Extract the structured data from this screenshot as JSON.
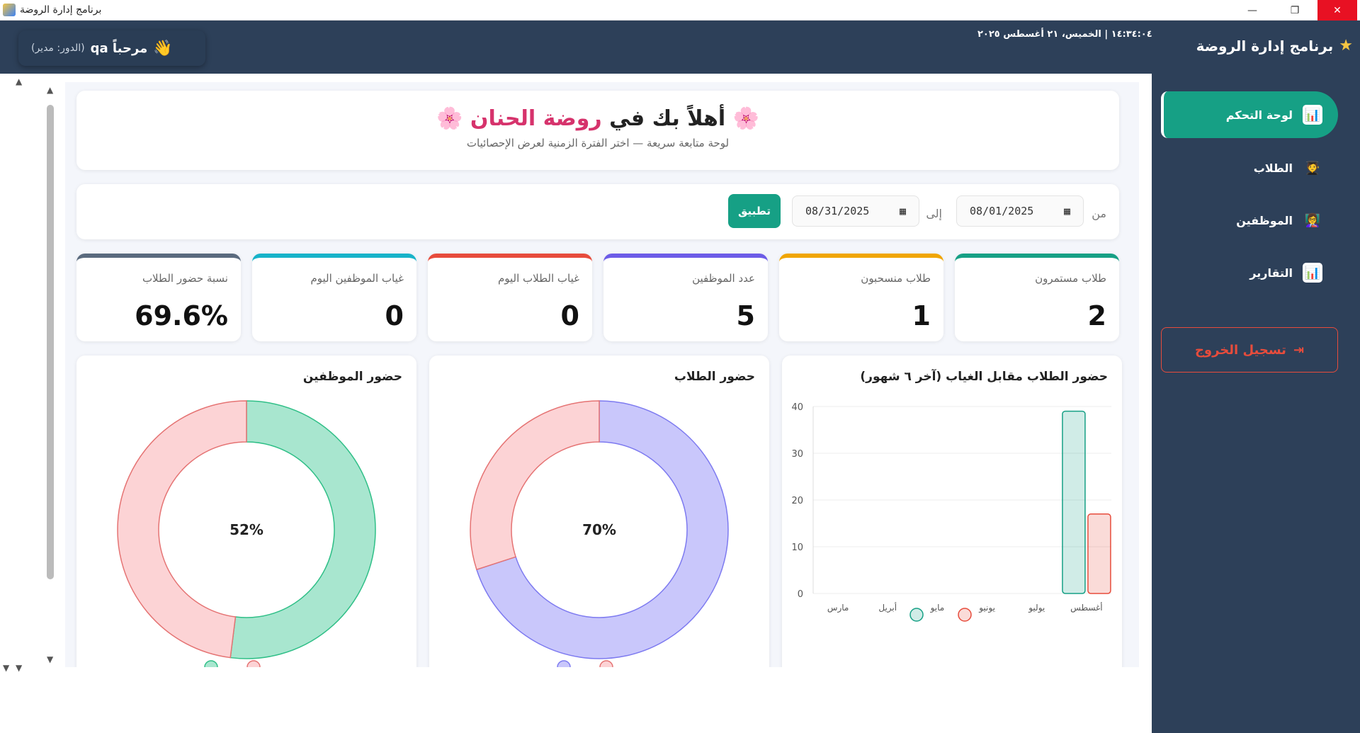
{
  "window": {
    "title": "برنامج إدارة الروضة",
    "min": "—",
    "max": "❐",
    "close": "✕"
  },
  "header": {
    "hand": "👋",
    "greeting": "مرحباً qa",
    "role": "(الدور: مدير)",
    "datetime": "١٤:٣٤:٠٤  |  الخميس، ٢١ أغسطس ٢٠٢٥",
    "star": "★",
    "brand": "برنامج إدارة الروضة"
  },
  "sidebar": {
    "items": [
      {
        "label": "لوحة التحكم",
        "icon": "📊"
      },
      {
        "label": "الطلاب",
        "icon": "🧑‍🎓"
      },
      {
        "label": "الموظفين",
        "icon": "👩‍🏫"
      },
      {
        "label": "التقارير",
        "icon": "📊"
      }
    ],
    "logout": "تسجيل الخروج",
    "logout_icon": "⇥"
  },
  "hero": {
    "flower": "🌸",
    "title_prefix": "أهلاً بك في",
    "title_highlight": "روضة الحنان",
    "subtitle": "لوحة متابعة سريعة — اختر الفترة الزمنية لعرض الإحصائيات"
  },
  "filter": {
    "from_label": "من",
    "from_value": "08/01/2025",
    "to_label": "إلى",
    "to_value": "08/31/2025",
    "apply": "تطبيق",
    "calendar_icon": "▦"
  },
  "stats": [
    {
      "label": "طلاب مستمرون",
      "value": "2",
      "color": "#16a085"
    },
    {
      "label": "طلاب منسحبون",
      "value": "1",
      "color": "#f0a500"
    },
    {
      "label": "عدد الموظفين",
      "value": "5",
      "color": "#6c5ce7"
    },
    {
      "label": "غياب الطلاب اليوم",
      "value": "0",
      "color": "#e74c3c"
    },
    {
      "label": "غياب الموظفين اليوم",
      "value": "0",
      "color": "#17b3c9"
    },
    {
      "label": "نسبة حضور الطلاب",
      "value": "69.6%",
      "color": "#5a6a7e"
    }
  ],
  "chart_data": [
    {
      "type": "bar",
      "title": "حضور الطلاب مقابل الغياب (آخر ٦ شهور)",
      "categories": [
        "مارس",
        "أبريل",
        "مايو",
        "يونيو",
        "يوليو",
        "أغسطس"
      ],
      "series": [
        {
          "values": [
            0,
            0,
            0,
            0,
            0,
            39
          ],
          "color": "#16a085"
        },
        {
          "values": [
            0,
            0,
            0,
            0,
            0,
            17
          ],
          "color": "#e74c3c"
        }
      ],
      "ylim": [
        0,
        40
      ],
      "yticks": [
        0,
        10,
        20,
        30,
        40
      ],
      "grid": true
    },
    {
      "type": "pie",
      "title": "حضور الطلاب",
      "center_label": "70%",
      "values": [
        70,
        30
      ],
      "colors": [
        "#c9c7fb",
        "#fcd3d5"
      ],
      "stroke_colors": [
        "#7d7af0",
        "#e57373"
      ]
    },
    {
      "type": "pie",
      "title": "حضور الموظفين",
      "center_label": "52%",
      "values": [
        52,
        48
      ],
      "colors": [
        "#a8e6cf",
        "#fcd3d5"
      ],
      "stroke_colors": [
        "#2fbf87",
        "#e57373"
      ]
    }
  ]
}
